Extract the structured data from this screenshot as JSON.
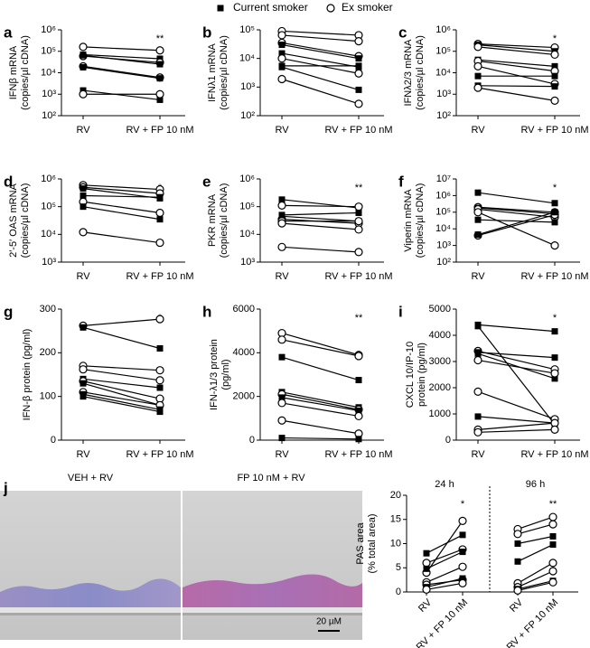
{
  "legend": [
    {
      "label": "Current smoker",
      "marker": "square"
    },
    {
      "label": "Ex smoker",
      "marker": "circle"
    }
  ],
  "micrographs": {
    "labels": [
      "VEH + RV",
      "FP 10 nM + RV"
    ],
    "scale_bar": "20 µM"
  },
  "chart_data": [
    {
      "type": "paired",
      "panel": "a",
      "ylabel": [
        "IFNβ mRNA",
        "(copies/µl cDNA)"
      ],
      "log": true,
      "color": "#000000",
      "categories": [
        "RV",
        "RV + FP 10 nM"
      ],
      "ylim": [
        100,
        1000000
      ],
      "yticks": [
        {
          "value": 100,
          "label": "10²"
        },
        {
          "value": 1000,
          "label": "10³"
        },
        {
          "value": 10000,
          "label": "10⁴"
        },
        {
          "value": 100000,
          "label": "10⁵"
        },
        {
          "value": 1000000,
          "label": "10⁶"
        }
      ],
      "significance": "**",
      "series": [
        {
          "marker": "circle",
          "values": [
            160000,
            110000
          ]
        },
        {
          "marker": "square",
          "values": [
            70000,
            45000
          ]
        },
        {
          "marker": "circle",
          "values": [
            60000,
            30000
          ]
        },
        {
          "marker": "square",
          "values": [
            65000,
            25000
          ]
        },
        {
          "marker": "circle",
          "values": [
            20000,
            6000
          ]
        },
        {
          "marker": "square",
          "values": [
            18000,
            5500
          ]
        },
        {
          "marker": "square",
          "values": [
            1500,
            550
          ]
        },
        {
          "marker": "circle",
          "values": [
            1000,
            1000
          ]
        }
      ]
    },
    {
      "type": "paired",
      "panel": "b",
      "ylabel": [
        "IFNλ1 mRNA",
        "(copies/µl cDNA)"
      ],
      "log": true,
      "color": "#000000",
      "categories": [
        "RV",
        "RV + FP 10 nM"
      ],
      "ylim": [
        100,
        100000
      ],
      "yticks": [
        {
          "value": 100,
          "label": "10²"
        },
        {
          "value": 1000,
          "label": "10³"
        },
        {
          "value": 10000,
          "label": "10⁴"
        },
        {
          "value": 100000,
          "label": "10⁵"
        }
      ],
      "significance": "**",
      "series": [
        {
          "marker": "circle",
          "values": [
            90000,
            65000
          ]
        },
        {
          "marker": "circle",
          "values": [
            65000,
            40000
          ]
        },
        {
          "marker": "circle",
          "values": [
            35000,
            12000
          ]
        },
        {
          "marker": "square",
          "values": [
            30000,
            10000
          ]
        },
        {
          "marker": "square",
          "values": [
            15000,
            5000
          ]
        },
        {
          "marker": "square",
          "values": [
            5500,
            5500
          ]
        },
        {
          "marker": "circle",
          "values": [
            10000,
            3000
          ]
        },
        {
          "marker": "square",
          "values": [
            5000,
            800
          ]
        },
        {
          "marker": "circle",
          "values": [
            1900,
            260
          ]
        }
      ]
    },
    {
      "type": "paired",
      "panel": "c",
      "ylabel": [
        "IFNλ2/3 mRNA",
        "(copies/µl cDNA)"
      ],
      "log": true,
      "color": "#000000",
      "categories": [
        "RV",
        "RV + FP 10 nM"
      ],
      "ylim": [
        100,
        1000000
      ],
      "yticks": [
        {
          "value": 100,
          "label": "10²"
        },
        {
          "value": 1000,
          "label": "10³"
        },
        {
          "value": 10000,
          "label": "10⁴"
        },
        {
          "value": 100000,
          "label": "10⁵"
        },
        {
          "value": 1000000,
          "label": "10⁶"
        }
      ],
      "significance": "*",
      "series": [
        {
          "marker": "circle",
          "values": [
            220000,
            150000
          ]
        },
        {
          "marker": "square",
          "values": [
            200000,
            100000
          ]
        },
        {
          "marker": "circle",
          "values": [
            160000,
            70000
          ]
        },
        {
          "marker": "square",
          "values": [
            40000,
            20000
          ]
        },
        {
          "marker": "circle",
          "values": [
            35000,
            12000
          ]
        },
        {
          "marker": "circle",
          "values": [
            20000,
            3000
          ]
        },
        {
          "marker": "square",
          "values": [
            7000,
            7000
          ]
        },
        {
          "marker": "square",
          "values": [
            2500,
            2300
          ]
        },
        {
          "marker": "circle",
          "values": [
            2000,
            500
          ]
        }
      ]
    },
    {
      "type": "paired",
      "panel": "d",
      "ylabel": [
        "2′-5′ OAS mRNA",
        "(copies/µl cDNA)"
      ],
      "log": true,
      "color": "#000000",
      "categories": [
        "RV",
        "RV + FP 10 nM"
      ],
      "ylim": [
        1000,
        1000000
      ],
      "yticks": [
        {
          "value": 1000,
          "label": "10³"
        },
        {
          "value": 10000,
          "label": "10⁴"
        },
        {
          "value": 100000,
          "label": "10⁵"
        },
        {
          "value": 1000000,
          "label": "10⁶"
        }
      ],
      "significance": "*",
      "series": [
        {
          "marker": "circle",
          "values": [
            600000,
            420000
          ]
        },
        {
          "marker": "circle",
          "values": [
            500000,
            300000
          ]
        },
        {
          "marker": "square",
          "values": [
            450000,
            200000
          ]
        },
        {
          "marker": "square",
          "values": [
            250000,
            220000
          ]
        },
        {
          "marker": "circle",
          "values": [
            150000,
            60000
          ]
        },
        {
          "marker": "square",
          "values": [
            100000,
            35000
          ]
        },
        {
          "marker": "circle",
          "values": [
            12000,
            5000
          ]
        }
      ]
    },
    {
      "type": "paired",
      "panel": "e",
      "ylabel": [
        "PKR mRNA",
        "(copies/µl cDNA)"
      ],
      "log": true,
      "color": "#000000",
      "categories": [
        "RV",
        "RV + FP 10 nM"
      ],
      "ylim": [
        1000,
        1000000
      ],
      "yticks": [
        {
          "value": 1000,
          "label": "10³"
        },
        {
          "value": 10000,
          "label": "10⁴"
        },
        {
          "value": 100000,
          "label": "10⁵"
        },
        {
          "value": 1000000,
          "label": "10⁶"
        }
      ],
      "significance": "**",
      "series": [
        {
          "marker": "square",
          "values": [
            180000,
            90000
          ]
        },
        {
          "marker": "circle",
          "values": [
            110000,
            100000
          ]
        },
        {
          "marker": "square",
          "values": [
            45000,
            30000
          ]
        },
        {
          "marker": "circle",
          "values": [
            35000,
            25000
          ]
        },
        {
          "marker": "circle",
          "values": [
            30000,
            30000
          ]
        },
        {
          "marker": "square",
          "values": [
            50000,
            60000
          ]
        },
        {
          "marker": "circle",
          "values": [
            25000,
            15000
          ]
        },
        {
          "marker": "circle",
          "values": [
            3500,
            2300
          ]
        }
      ]
    },
    {
      "type": "paired",
      "panel": "f",
      "ylabel": [
        "Viperin mRNA",
        "(copies/µl cDNA)"
      ],
      "log": true,
      "color": "#000000",
      "categories": [
        "RV",
        "RV + FP 10 nM"
      ],
      "ylim": [
        100,
        10000000
      ],
      "yticks": [
        {
          "value": 100,
          "label": "10²"
        },
        {
          "value": 1000,
          "label": "10³"
        },
        {
          "value": 10000,
          "label": "10⁴"
        },
        {
          "value": 100000,
          "label": "10⁵"
        },
        {
          "value": 1000000,
          "label": "10⁶"
        },
        {
          "value": 10000000,
          "label": "10⁷"
        }
      ],
      "significance": "*",
      "series": [
        {
          "marker": "square",
          "values": [
            1500000,
            350000
          ]
        },
        {
          "marker": "circle",
          "values": [
            200000,
            100000
          ]
        },
        {
          "marker": "square",
          "values": [
            180000,
            80000
          ]
        },
        {
          "marker": "circle",
          "values": [
            150000,
            50000
          ]
        },
        {
          "marker": "square",
          "values": [
            35000,
            25000
          ]
        },
        {
          "marker": "circle",
          "values": [
            4000,
            70000
          ]
        },
        {
          "marker": "square",
          "values": [
            4500,
            100000
          ]
        },
        {
          "marker": "circle",
          "values": [
            100000,
            1000
          ]
        }
      ]
    },
    {
      "type": "paired",
      "panel": "g",
      "ylabel": [
        "IFN-β protein (pg/ml)"
      ],
      "log": false,
      "color": "#000000",
      "categories": [
        "RV",
        "RV + FP 10 nM"
      ],
      "ylim": [
        0,
        300
      ],
      "yticks": [
        0,
        100,
        200,
        300
      ],
      "significance": "*",
      "series": [
        {
          "marker": "circle",
          "values": [
            262,
            277
          ]
        },
        {
          "marker": "square",
          "values": [
            258,
            210
          ]
        },
        {
          "marker": "circle",
          "values": [
            170,
            160
          ]
        },
        {
          "marker": "circle",
          "values": [
            162,
            137
          ]
        },
        {
          "marker": "square",
          "values": [
            140,
            120
          ]
        },
        {
          "marker": "circle",
          "values": [
            135,
            95
          ]
        },
        {
          "marker": "square",
          "values": [
            130,
            80
          ]
        },
        {
          "marker": "circle",
          "values": [
            110,
            80
          ]
        },
        {
          "marker": "square",
          "values": [
            105,
            70
          ]
        },
        {
          "marker": "square",
          "values": [
            100,
            65
          ]
        }
      ]
    },
    {
      "type": "paired",
      "panel": "h",
      "ylabel": [
        "IFN-λ1/3 protein",
        "(pg/ml)"
      ],
      "log": false,
      "color": "#000000",
      "categories": [
        "RV",
        "RV + FP 10 nM"
      ],
      "ylim": [
        0,
        6000
      ],
      "yticks": [
        0,
        2000,
        4000,
        6000
      ],
      "significance": "**",
      "series": [
        {
          "marker": "circle",
          "values": [
            4900,
            3900
          ]
        },
        {
          "marker": "circle",
          "values": [
            4600,
            3850
          ]
        },
        {
          "marker": "square",
          "values": [
            3800,
            2750
          ]
        },
        {
          "marker": "square",
          "values": [
            2200,
            1500
          ]
        },
        {
          "marker": "circle",
          "values": [
            2100,
            1400
          ]
        },
        {
          "marker": "square",
          "values": [
            1950,
            1350
          ]
        },
        {
          "marker": "circle",
          "values": [
            1700,
            1100
          ]
        },
        {
          "marker": "circle",
          "values": [
            900,
            300
          ]
        },
        {
          "marker": "square",
          "values": [
            100,
            50
          ]
        }
      ]
    },
    {
      "type": "paired",
      "panel": "i",
      "ylabel": [
        "CXCL 10/IP-10",
        "protein (pg/ml)"
      ],
      "log": false,
      "color": "#000000",
      "categories": [
        "RV",
        "RV + FP 10 nM"
      ],
      "ylim": [
        0,
        5000
      ],
      "yticks": [
        0,
        1000,
        2000,
        3000,
        4000,
        5000
      ],
      "significance": "*",
      "series": [
        {
          "marker": "square",
          "values": [
            4400,
            4150
          ]
        },
        {
          "marker": "square",
          "values": [
            4350,
            600
          ]
        },
        {
          "marker": "circle",
          "values": [
            3400,
            2700
          ]
        },
        {
          "marker": "square",
          "values": [
            3350,
            3150
          ]
        },
        {
          "marker": "square",
          "values": [
            3300,
            2350
          ]
        },
        {
          "marker": "circle",
          "values": [
            3050,
            2550
          ]
        },
        {
          "marker": "circle",
          "values": [
            1850,
            800
          ]
        },
        {
          "marker": "square",
          "values": [
            900,
            650
          ]
        },
        {
          "marker": "circle",
          "values": [
            400,
            650
          ]
        },
        {
          "marker": "circle",
          "values": [
            300,
            400
          ]
        }
      ]
    },
    {
      "type": "paired-grouped",
      "panel": "j",
      "ylabel": [
        "PAS area",
        "(% total area)"
      ],
      "log": false,
      "color": "#000000",
      "categories": [
        "RV",
        "RV + FP 10 nM"
      ],
      "ylim": [
        0,
        20
      ],
      "yticks": [
        0,
        5,
        10,
        15,
        20
      ],
      "groups": [
        {
          "label": "24 h",
          "significance": "*",
          "series": [
            {
              "marker": "circle",
              "values": [
                4,
                14.7
              ]
            },
            {
              "marker": "square",
              "values": [
                8,
                11.8
              ]
            },
            {
              "marker": "circle",
              "values": [
                6,
                8.8
              ]
            },
            {
              "marker": "square",
              "values": [
                4.8,
                8.3
              ]
            },
            {
              "marker": "circle",
              "values": [
                2,
                5.2
              ]
            },
            {
              "marker": "circle",
              "values": [
                1.5,
                2.5
              ]
            },
            {
              "marker": "square",
              "values": [
                1,
                2.8
              ]
            },
            {
              "marker": "circle",
              "values": [
                0.5,
                1.8
              ]
            }
          ]
        },
        {
          "label": "96 h",
          "significance": "**",
          "series": [
            {
              "marker": "circle",
              "values": [
                13,
                15.5
              ]
            },
            {
              "marker": "circle",
              "values": [
                12,
                14
              ]
            },
            {
              "marker": "square",
              "values": [
                10,
                11.5
              ]
            },
            {
              "marker": "square",
              "values": [
                6.3,
                9.8
              ]
            },
            {
              "marker": "circle",
              "values": [
                1.8,
                6
              ]
            },
            {
              "marker": "circle",
              "values": [
                1,
                4.3
              ]
            },
            {
              "marker": "square",
              "values": [
                0.6,
                2.3
              ]
            },
            {
              "marker": "circle",
              "values": [
                0.3,
                2
              ]
            }
          ]
        }
      ]
    }
  ]
}
